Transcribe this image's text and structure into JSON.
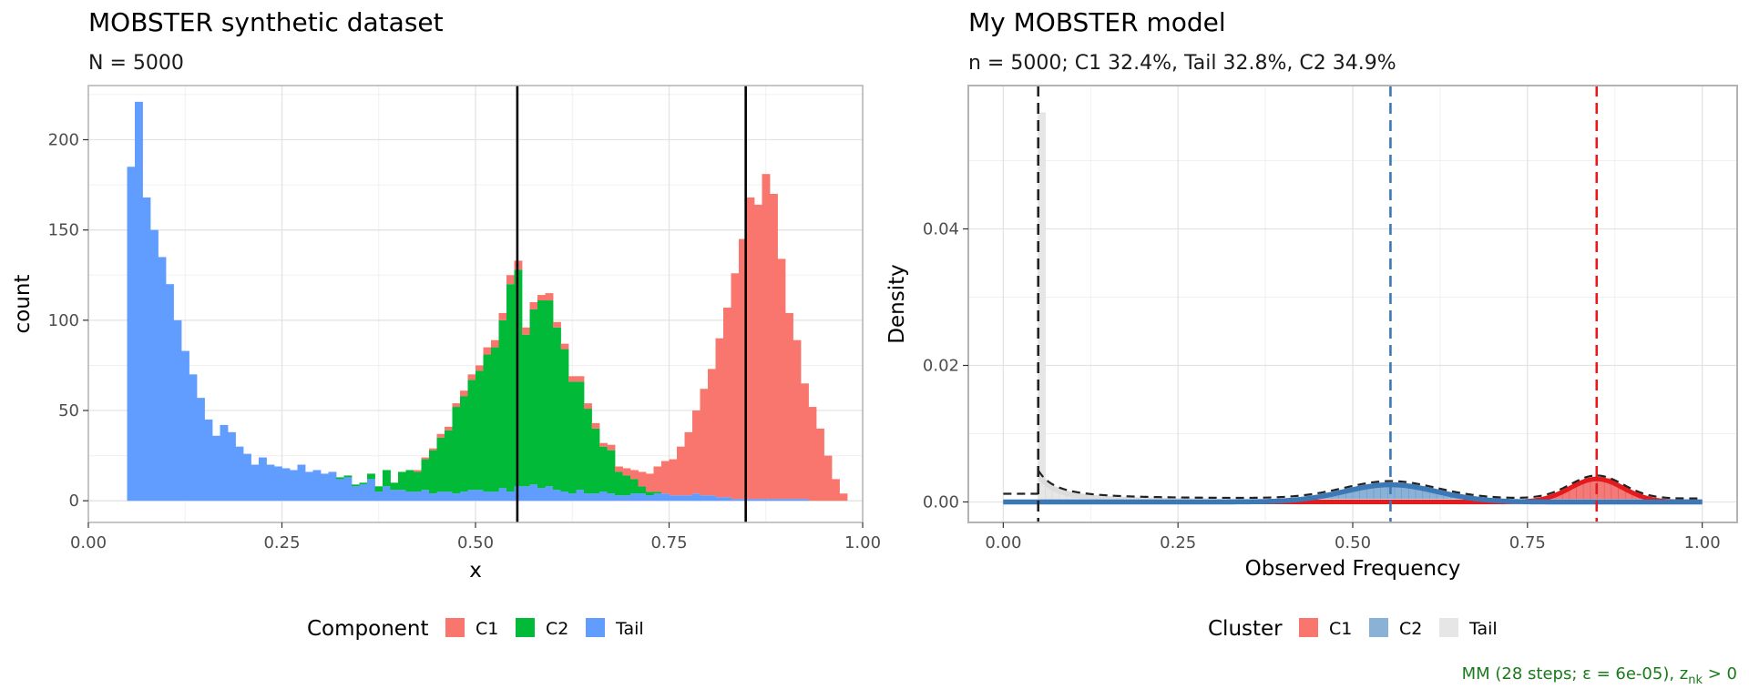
{
  "chart_data": [
    {
      "type": "bar",
      "stacked": true,
      "title": "MOBSTER synthetic dataset",
      "subtitle": "N = 5000",
      "xlabel": "x",
      "ylabel": "count",
      "xlim": [
        0,
        1
      ],
      "ylim": [
        -12,
        230
      ],
      "xticks": [
        0.0,
        0.25,
        0.5,
        0.75,
        1.0
      ],
      "xtick_labels": [
        "0.00",
        "0.25",
        "0.50",
        "0.75",
        "1.00"
      ],
      "yticks": [
        0,
        50,
        100,
        150,
        200
      ],
      "ytick_labels": [
        "0",
        "50",
        "100",
        "150",
        "200"
      ],
      "bin_width": 0.01,
      "bin_start": 0.04,
      "vlines": [
        0.554,
        0.849
      ],
      "legend": {
        "title": "Component",
        "position": "bottom",
        "items": [
          {
            "name": "C1",
            "color": "#F8766D"
          },
          {
            "name": "C2",
            "color": "#00BA38"
          },
          {
            "name": "Tail",
            "color": "#619CFF"
          }
        ]
      },
      "series": [
        {
          "name": "Tail",
          "color": "#619CFF",
          "values": [
            0,
            185,
            221,
            168,
            150,
            135,
            120,
            100,
            83,
            70,
            57,
            45,
            36,
            42,
            38,
            30,
            26,
            20,
            24,
            20,
            19,
            18,
            17,
            20,
            16,
            17,
            15,
            16,
            12,
            13,
            8,
            9,
            12,
            5,
            8,
            6,
            6,
            5,
            5,
            6,
            4,
            5,
            5,
            4,
            5,
            6,
            6,
            5,
            5,
            7,
            5,
            8,
            8,
            9,
            7,
            8,
            6,
            5,
            4,
            6,
            4,
            4,
            5,
            4,
            3,
            3,
            4,
            4,
            3,
            4,
            4,
            3,
            3,
            3,
            4,
            3,
            3,
            2,
            2,
            1,
            1,
            1,
            1,
            1,
            1,
            1,
            1,
            1,
            1,
            0,
            0,
            0,
            0,
            0,
            0,
            0,
            0
          ]
        },
        {
          "name": "C2",
          "color": "#00BA38",
          "values": [
            0,
            0,
            0,
            0,
            0,
            0,
            0,
            0,
            0,
            0,
            0,
            0,
            0,
            0,
            0,
            0,
            0,
            0,
            0,
            0,
            0,
            0,
            0,
            0,
            0,
            0,
            0,
            0,
            1,
            1,
            1,
            1,
            3,
            3,
            9,
            4,
            10,
            12,
            11,
            17,
            24,
            30,
            34,
            48,
            53,
            61,
            66,
            76,
            80,
            93,
            115,
            120,
            84,
            97,
            104,
            103,
            90,
            79,
            62,
            60,
            47,
            36,
            25,
            24,
            13,
            11,
            8,
            4,
            2,
            1,
            0,
            0,
            0,
            0,
            0,
            0,
            0,
            0,
            0,
            0,
            0,
            0,
            0,
            0,
            0,
            0,
            0,
            0,
            0,
            0,
            0,
            0,
            0,
            0,
            0,
            0
          ]
        },
        {
          "name": "C1",
          "color": "#F8766D",
          "values": [
            0,
            0,
            0,
            0,
            0,
            0,
            0,
            0,
            0,
            0,
            0,
            0,
            0,
            0,
            0,
            0,
            0,
            0,
            0,
            0,
            0,
            0,
            0,
            0,
            0,
            0,
            0,
            0,
            0,
            0,
            0,
            0,
            0,
            0,
            0,
            0,
            0,
            0,
            1,
            1,
            1,
            2,
            2,
            2,
            3,
            3,
            3,
            4,
            4,
            4,
            5,
            5,
            4,
            4,
            3,
            4,
            3,
            3,
            3,
            3,
            3,
            3,
            2,
            3,
            3,
            4,
            5,
            8,
            10,
            14,
            18,
            20,
            27,
            35,
            46,
            59,
            70,
            88,
            105,
            125,
            144,
            167,
            163,
            180,
            169,
            133,
            103,
            88,
            64,
            52,
            40,
            25,
            12,
            4,
            0,
            0,
            0
          ]
        }
      ]
    },
    {
      "type": "histogram_density",
      "title": "My MOBSTER model",
      "subtitle": "n = 5000; C1 32.4%, Tail 32.8%, C2 34.9%",
      "xlabel": "Observed Frequency",
      "ylabel": "Density",
      "xlim": [
        -0.05,
        1.05
      ],
      "ylim": [
        -0.003,
        0.061
      ],
      "xticks": [
        0.0,
        0.25,
        0.5,
        0.75,
        1.0
      ],
      "xtick_labels": [
        "0.00",
        "0.25",
        "0.50",
        "0.75",
        "1.00"
      ],
      "yticks": [
        0.0,
        0.02,
        0.04
      ],
      "ytick_labels": [
        "0.00",
        "0.02",
        "0.04"
      ],
      "legend": {
        "title": "Cluster",
        "position": "bottom",
        "items": [
          {
            "name": "C1",
            "color": "#F8766D"
          },
          {
            "name": "C2",
            "color": "#8AB2D6"
          },
          {
            "name": "Tail",
            "color": "#E6E6E6"
          }
        ]
      },
      "vlines": [
        {
          "x": 0.05,
          "color": "#222222",
          "style": "dashed"
        },
        {
          "x": 0.554,
          "color": "#3B78B5",
          "style": "dashed"
        },
        {
          "x": 0.849,
          "color": "#E41A1C",
          "style": "dashed"
        }
      ],
      "clusters": [
        {
          "name": "Tail",
          "weight": 0.328,
          "type": "pareto",
          "shape": 1.0,
          "scale": 0.05,
          "color": "#E0E0E0"
        },
        {
          "name": "C2",
          "weight": 0.349,
          "type": "beta",
          "mean": 0.554,
          "sd": 0.066,
          "color": "#3B78B5"
        },
        {
          "name": "C1",
          "weight": 0.324,
          "type": "beta",
          "mean": 0.849,
          "sd": 0.038,
          "color": "#E41A1C"
        }
      ],
      "caption": "MM (28 steps; ε = 6e-05), z",
      "caption_sub": "nk",
      "caption_tail": " > 0"
    }
  ]
}
